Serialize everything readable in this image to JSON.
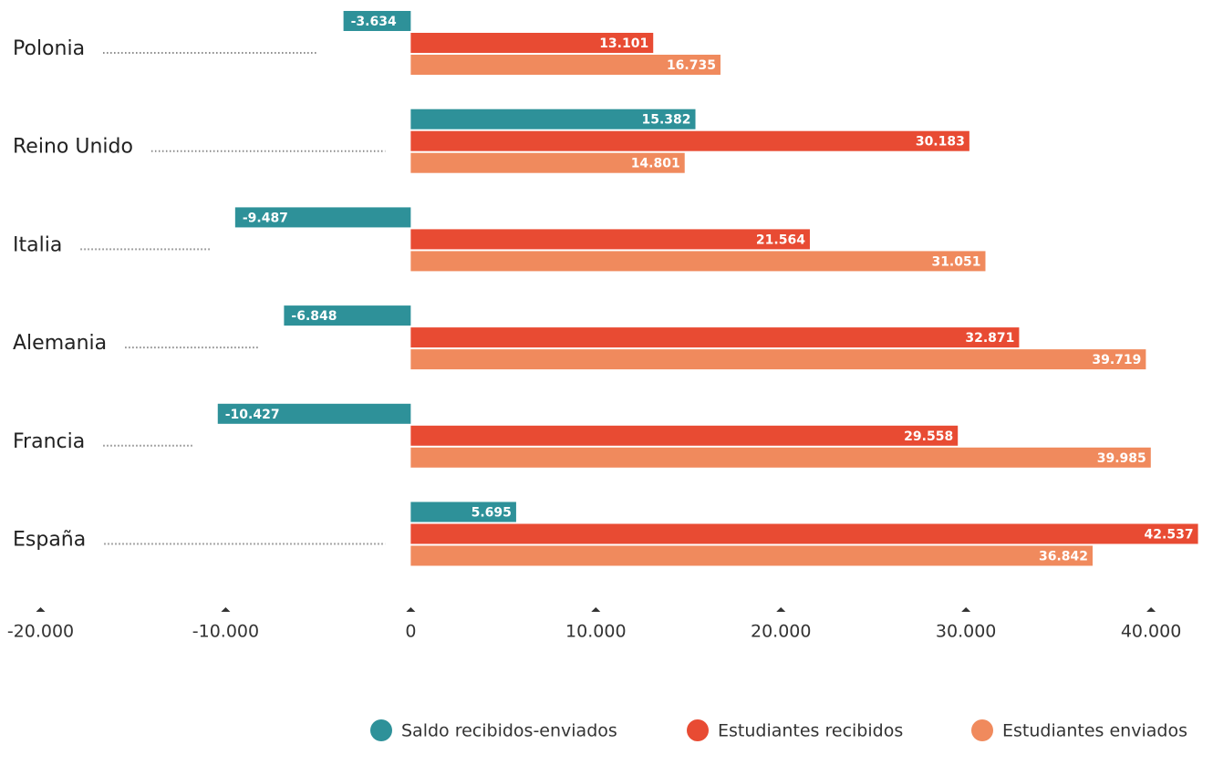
{
  "chart_data": {
    "type": "hbar",
    "categories": [
      "Polonia",
      "Reino Unido",
      "Italia",
      "Alemania",
      "Francia",
      "España"
    ],
    "series": [
      {
        "name": "Saldo recibidos-enviados",
        "color": "#2e9199",
        "values": [
          -3634,
          15382,
          -9487,
          -6848,
          -10427,
          5695
        ],
        "value_labels": [
          "-3.634",
          "15.382",
          "-9.487",
          "-6.848",
          "-10.427",
          "5.695"
        ]
      },
      {
        "name": "Estudiantes recibidos",
        "color": "#e84b33",
        "values": [
          13101,
          30183,
          21564,
          32871,
          29558,
          42537
        ],
        "value_labels": [
          "13.101",
          "30.183",
          "21.564",
          "32.871",
          "29.558",
          "42.537"
        ]
      },
      {
        "name": "Estudiantes enviados",
        "color": "#f08a5d",
        "values": [
          16735,
          14801,
          31051,
          39719,
          39985,
          36842
        ],
        "value_labels": [
          "16.735",
          "14.801",
          "31.051",
          "39.719",
          "39.985",
          "36.842"
        ]
      }
    ],
    "xlim": [
      -21700,
      43100
    ],
    "xticks": [
      {
        "value": -20000,
        "label": "-20.000"
      },
      {
        "value": -10000,
        "label": "-10.000"
      },
      0,
      {
        "value": 10000,
        "label": "10.000"
      },
      {
        "value": 20000,
        "label": "20.000"
      },
      {
        "value": 30000,
        "label": "30.000"
      },
      {
        "value": 40000,
        "label": "40.000"
      }
    ]
  }
}
